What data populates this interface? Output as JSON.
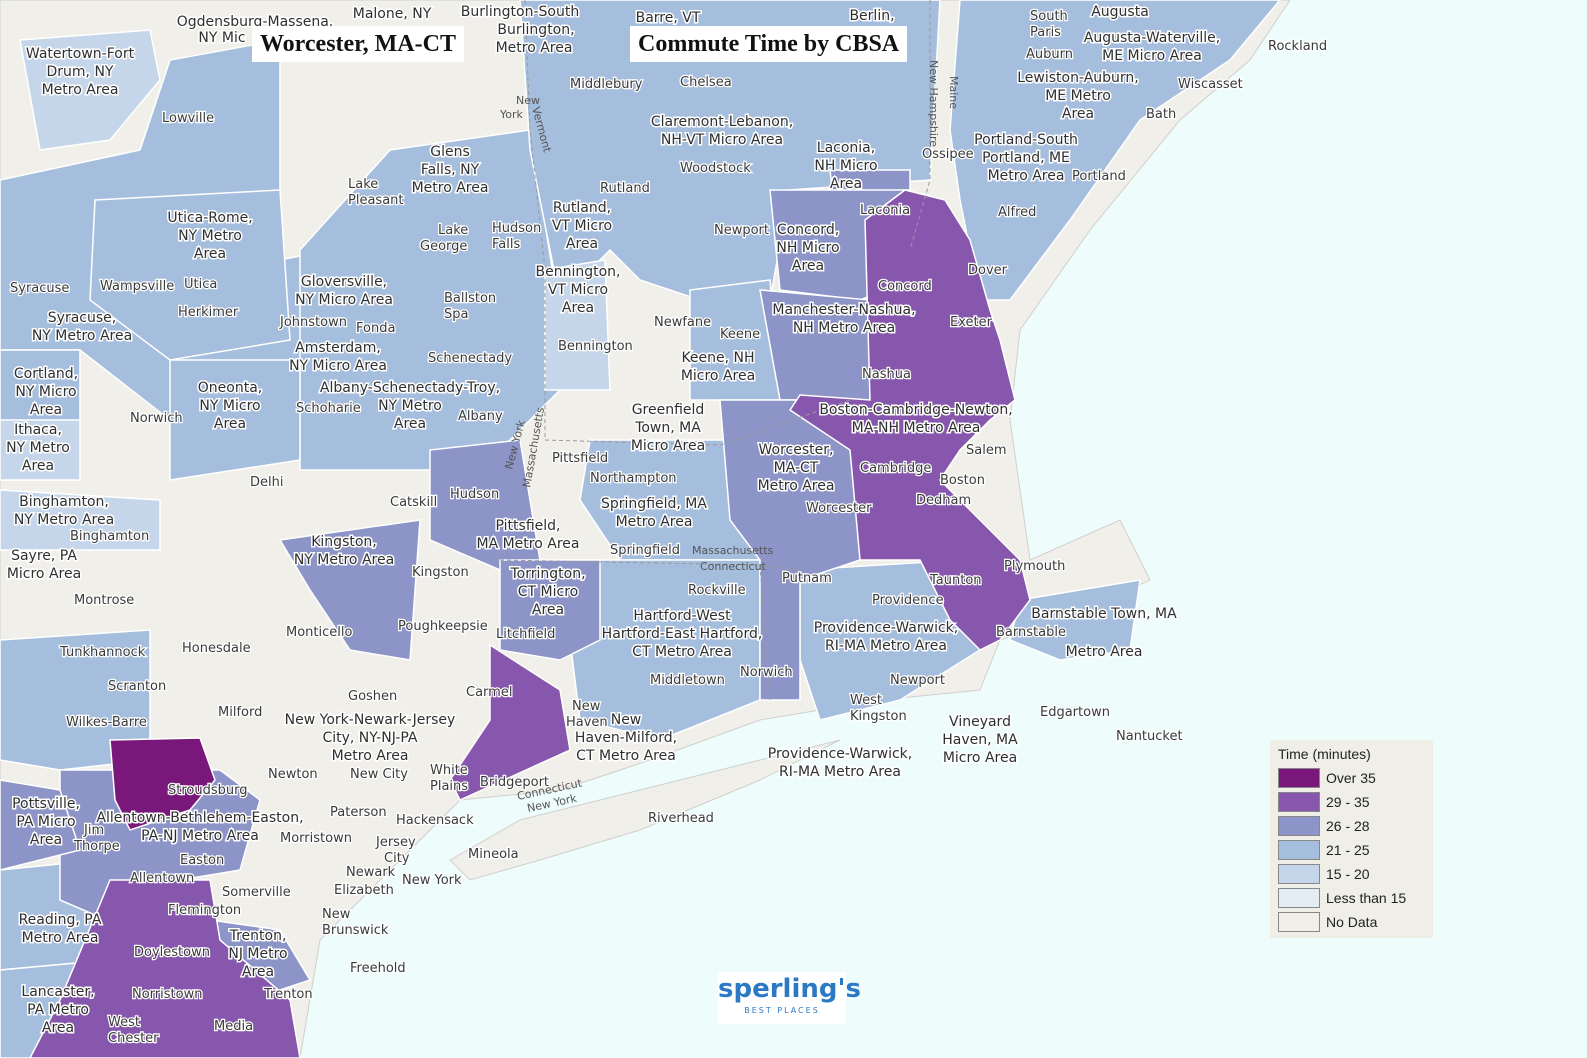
{
  "title_left": "Worcester, MA-CT",
  "title_right": "Commute Time by CBSA",
  "colors": {
    "ocean": "#eefcfc",
    "nodata": "#f1efe9",
    "c21_25": "#a6bedd",
    "c15_20": "#c6d6ea",
    "c26_28": "#8c94c8",
    "c29_35": "#8756ad",
    "over35": "#7a177b"
  },
  "legend": {
    "title": "Time (minutes)",
    "items": [
      {
        "label": "Over 35",
        "color": "#7a177b"
      },
      {
        "label": "29 - 35",
        "color": "#8756ad"
      },
      {
        "label": "26 - 28",
        "color": "#8c94c8"
      },
      {
        "label": "21 - 25",
        "color": "#a6bedd"
      },
      {
        "label": "15 - 20",
        "color": "#c6d6ea"
      },
      {
        "label": "Less than 15",
        "color": "#e4ecf4"
      },
      {
        "label": "No Data",
        "color": "#f1efe9"
      }
    ]
  },
  "logo": {
    "main": "sperling's",
    "sub": "BEST PLACES"
  },
  "area_labels": [
    "Ogdensburg-Massena,",
    "NY Mic",
    "Malone, NY",
    "Burlington-South",
    "Burlington,",
    "Metro Area",
    "Barre, VT",
    "Berlin,",
    "Augusta",
    "Augusta-Waterville,",
    "ME Micro Area",
    "Watertown-Fort",
    "Drum, NY",
    "Metro Area",
    "Lewiston-Auburn,",
    "ME Metro",
    "Area",
    "Claremont-Lebanon,",
    "NH-VT Micro Area",
    "Glens",
    "Falls, NY",
    "Metro Area",
    "Laconia,",
    "NH Micro",
    "Area",
    "Portland-South",
    "Portland, ME",
    "Metro Area",
    "Utica-Rome,",
    "NY Metro",
    "Area",
    "Rutland,",
    "VT Micro",
    "Area",
    "Concord,",
    "NH Micro",
    "Area",
    "Bennington,",
    "VT Micro",
    "Area",
    "Gloversville,",
    "NY Micro Area",
    "Syracuse,",
    "NY Metro Area",
    "Manchester-Nashua,",
    "NH Metro Area",
    "Amsterdam,",
    "NY Micro Area",
    "Keene, NH",
    "Micro Area",
    "Cortland,",
    "NY Micro",
    "Area",
    "Oneonta,",
    "NY Micro",
    "Area",
    "Albany-Schenectady-Troy,",
    "NY Metro",
    "Area",
    "Greenfield",
    "Town, MA",
    "Micro Area",
    "Boston-Cambridge-Newton,",
    "MA-NH Metro Area",
    "Ithaca,",
    "NY Metro",
    "Area",
    "Worcester,",
    "MA-CT",
    "Metro Area",
    "Binghamton,",
    "NY Metro Area",
    "Springfield, MA",
    "Metro Area",
    "Pittsfield,",
    "MA Metro Area",
    "Kingston,",
    "NY Metro Area",
    "Sayre, PA",
    "Micro Area",
    "Torrington,",
    "CT Micro",
    "Area",
    "Hartford-West",
    "Hartford-East Hartford,",
    "CT Metro Area",
    "Providence-Warwick,",
    "RI-MA Metro Area",
    "Barnstable Town, MA",
    "Metro Area",
    "New York-Newark-Jersey",
    "City, NY-NJ-PA",
    "Metro Area",
    "New",
    "Haven-Milford,",
    "CT Metro Area",
    "Providence-Warwick,",
    "RI-MA Metro Area",
    "Vineyard",
    "Haven, MA",
    "Micro Area",
    "Pottsville,",
    "PA Micro",
    "Area",
    "Allentown-Bethlehem-Easton,",
    "PA-NJ Metro Area",
    "Reading, PA",
    "Metro Area",
    "Trenton,",
    "NJ Metro",
    "Area",
    "Lancaster,",
    "PA Metro",
    "Area"
  ],
  "cities": [
    "South",
    "Paris",
    "Auburn",
    "Rockland",
    "Wiscasset",
    "Bath",
    "Middlebury",
    "Chelsea",
    "Lowville",
    "Woodstock",
    "Ossipee",
    "Portland",
    "Lake",
    "Pleasant",
    "Rutland",
    "Alfred",
    "Laconia",
    "Lake",
    "George",
    "Hudson",
    "Falls",
    "Newport",
    "Dover",
    "Syracuse",
    "Wampsville",
    "Utica",
    "Herkimer",
    "Ballston",
    "Spa",
    "Concord",
    "Newfane",
    "Keene",
    "Exeter",
    "Johnstown",
    "Fonda",
    "Bennington",
    "Schenectady",
    "Nashua",
    "Schoharie",
    "Albany",
    "Norwich",
    "Salem",
    "Pittsfield",
    "Northampton",
    "Cambridge",
    "Boston",
    "Delhi",
    "Catskill",
    "Hudson",
    "Worcester",
    "Dedham",
    "Binghamton",
    "Springfield",
    "Kingston",
    "Rockville",
    "Putnam",
    "Plymouth",
    "Taunton",
    "Montrose",
    "Providence",
    "Poughkeepsie",
    "Litchfield",
    "Monticello",
    "Honesdale",
    "Barnstable",
    "Tunkhannock",
    "Norwich",
    "Middletown",
    "Newport",
    "Scranton",
    "Goshen",
    "Carmel",
    "New",
    "Haven",
    "West",
    "Kingston",
    "Edgartown",
    "Milford",
    "Wilkes-Barre",
    "Nantucket",
    "Newton",
    "New City",
    "White",
    "Plains",
    "Bridgeport",
    "Stroudsburg",
    "Riverhead",
    "Paterson",
    "Hackensack",
    "Jim",
    "Thorpe",
    "Morristown",
    "Mineola",
    "Jersey",
    "City",
    "Easton",
    "Newark",
    "Elizabeth",
    "New York",
    "Allentown",
    "Somerville",
    "Flemington",
    "New",
    "Brunswick",
    "Doylestown",
    "Freehold",
    "Norristown",
    "Trenton",
    "West",
    "Chester",
    "Media"
  ],
  "state_labels": [
    "New",
    "York",
    "Vermont",
    "New Hampshire",
    "Maine",
    "New York",
    "Massachusetts",
    "Massachusetts",
    "Connecticut",
    "Connecticut",
    "New York"
  ]
}
